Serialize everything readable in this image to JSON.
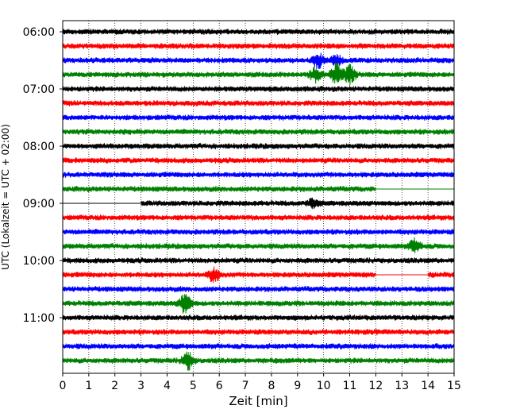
{
  "chart_data": {
    "type": "line",
    "title": "",
    "xlabel": "Zeit  [min]",
    "ylabel": "UTC (Lokalzeit = UTC + 02:00)",
    "xlim": [
      0,
      15
    ],
    "x_ticks": [
      "0",
      "1",
      "2",
      "3",
      "4",
      "5",
      "6",
      "7",
      "8",
      "9",
      "10",
      "11",
      "12",
      "13",
      "14",
      "15"
    ],
    "y_ticks": [
      "06:00",
      "07:00",
      "08:00",
      "09:00",
      "10:00",
      "11:00"
    ],
    "grid": true,
    "legend": "none",
    "colors": [
      "#000000",
      "#ff0000",
      "#0000ff",
      "#008000"
    ],
    "trace_minutes": 15,
    "traces": [
      {
        "start": "06:00",
        "color": "#000000",
        "events": []
      },
      {
        "start": "06:15",
        "color": "#ff0000",
        "events": []
      },
      {
        "start": "06:30",
        "color": "#0000ff",
        "events": [
          [
            9.8,
            9
          ],
          [
            10.5,
            6
          ]
        ]
      },
      {
        "start": "06:45",
        "color": "#008000",
        "events": [
          [
            9.7,
            8
          ],
          [
            10.5,
            14
          ],
          [
            11.0,
            10
          ]
        ]
      },
      {
        "start": "07:00",
        "color": "#000000",
        "events": []
      },
      {
        "start": "07:15",
        "color": "#ff0000",
        "events": []
      },
      {
        "start": "07:30",
        "color": "#0000ff",
        "events": []
      },
      {
        "start": "07:45",
        "color": "#008000",
        "events": []
      },
      {
        "start": "08:00",
        "color": "#000000",
        "events": []
      },
      {
        "start": "08:15",
        "color": "#ff0000",
        "events": []
      },
      {
        "start": "08:30",
        "color": "#0000ff",
        "events": []
      },
      {
        "start": "08:45",
        "color": "#008000",
        "events": [],
        "flat": [
          [
            12,
            15
          ]
        ]
      },
      {
        "start": "09:00",
        "color": "#000000",
        "events": [
          [
            9.6,
            5
          ]
        ],
        "flat": [
          [
            0,
            3
          ]
        ]
      },
      {
        "start": "09:15",
        "color": "#ff0000",
        "events": []
      },
      {
        "start": "09:30",
        "color": "#0000ff",
        "events": []
      },
      {
        "start": "09:45",
        "color": "#008000",
        "events": [
          [
            13.5,
            8
          ]
        ]
      },
      {
        "start": "10:00",
        "color": "#000000",
        "events": []
      },
      {
        "start": "10:15",
        "color": "#ff0000",
        "events": [
          [
            5.8,
            8
          ]
        ],
        "flat": [
          [
            12,
            14
          ]
        ]
      },
      {
        "start": "10:30",
        "color": "#0000ff",
        "events": []
      },
      {
        "start": "10:45",
        "color": "#008000",
        "events": [
          [
            4.7,
            12
          ]
        ]
      },
      {
        "start": "11:00",
        "color": "#000000",
        "events": []
      },
      {
        "start": "11:15",
        "color": "#ff0000",
        "events": []
      },
      {
        "start": "11:30",
        "color": "#0000ff",
        "events": []
      },
      {
        "start": "11:45",
        "color": "#008000",
        "events": [
          [
            4.8,
            10
          ]
        ]
      }
    ]
  }
}
